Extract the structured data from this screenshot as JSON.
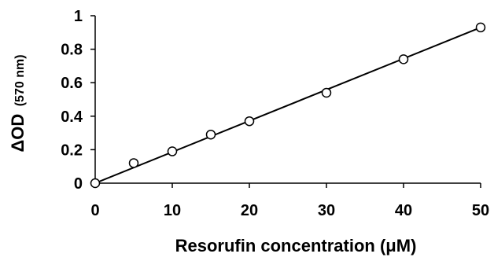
{
  "chart_data": {
    "type": "scatter",
    "title": "",
    "xlabel": "Resorufin concentration (μM)",
    "ylabel_main": "ΔOD",
    "ylabel_sub": "(570 nm)",
    "xlim": [
      0,
      50
    ],
    "ylim": [
      0,
      1
    ],
    "x_ticks": [
      "0",
      "10",
      "20",
      "30",
      "40",
      "50"
    ],
    "y_ticks": [
      "0",
      "0.2",
      "0.4",
      "0.6",
      "0.8",
      "1"
    ],
    "grid": false,
    "series": [
      {
        "marker": "open-circle",
        "color": "#000000",
        "x": [
          0,
          5,
          10,
          15,
          20,
          30,
          40,
          50
        ],
        "y": [
          0.0,
          0.12,
          0.19,
          0.29,
          0.37,
          0.54,
          0.74,
          0.93
        ]
      }
    ],
    "trendline": {
      "type": "linear",
      "from": [
        0,
        0.0
      ],
      "to": [
        50,
        0.93
      ],
      "color": "#000000"
    }
  }
}
